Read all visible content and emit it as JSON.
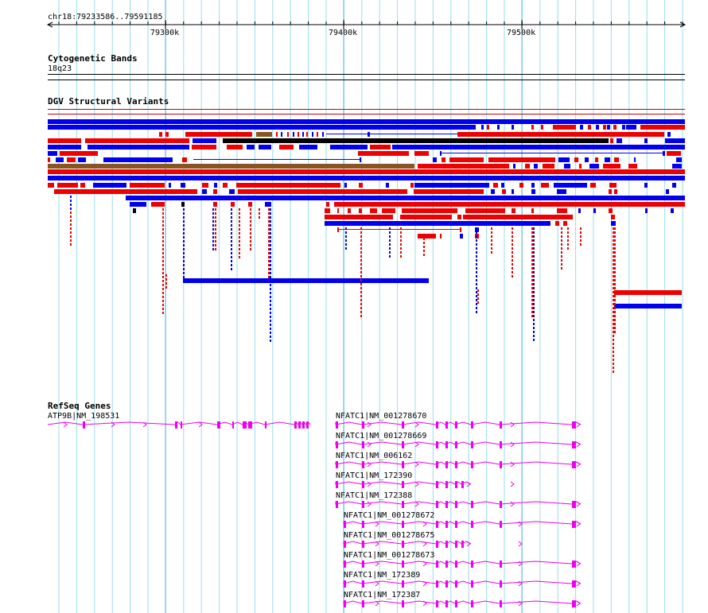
{
  "ruler": {
    "location": "chr18:79233586..79591185",
    "ticks": [
      "79300k",
      "79400k",
      "79500k"
    ]
  },
  "tracks": {
    "cytoband": {
      "title": "Cytogenetic Bands",
      "band": "18q23"
    },
    "dgv": {
      "title": "DGV Structural Variants"
    },
    "refseq": {
      "title": "RefSeq Genes",
      "genes": [
        {
          "label": "ATP9B|NM_198531"
        },
        {
          "label": "NFATC1|NM_001278670"
        },
        {
          "label": "NFATC1|NM_001278669"
        },
        {
          "label": "NFATC1|NM_006162"
        },
        {
          "label": "NFATC1|NM_172390"
        },
        {
          "label": "NFATC1|NM_172388"
        },
        {
          "label": "NFATC1|NM_001278672"
        },
        {
          "label": "NFATC1|NM_001278675"
        },
        {
          "label": "NFATC1|NM_001278673"
        },
        {
          "label": "NFATC1|NM_172389"
        },
        {
          "label": "NFATC1|NM_172387"
        }
      ]
    }
  },
  "colors": {
    "gain": "#0000ee",
    "loss": "#ee0000",
    "complex": "#885522",
    "inversion": "#000000",
    "gene": "#ee00ee",
    "grid": "#99ddee"
  }
}
